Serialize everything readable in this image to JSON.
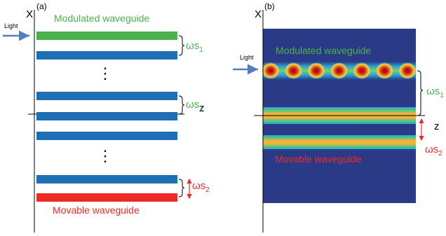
{
  "panel_a": {
    "tag": "(a)",
    "x_axis_label": "X",
    "z_axis_label": "z",
    "light_label": "Light",
    "modulated_label": "Modulated waveguide",
    "movable_label": "Movable waveguide",
    "spacing_1_label": "ωs",
    "spacing_1_sub": "1",
    "spacing_1b_label": "ωs",
    "spacing_1b_sub": "1",
    "spacing_2_label": "ωs",
    "spacing_2_sub": "2",
    "ellipsis_1": "⋮",
    "ellipsis_2": "⋮"
  },
  "panel_b": {
    "tag": "(b)",
    "x_axis_label": "X",
    "z_axis_label": "z",
    "light_label": "Light",
    "modulated_label": "Modulated waveguide",
    "movable_label": "Movable waveguide",
    "spacing_1_label": "ωs",
    "spacing_1_sub": "1",
    "spacing_2_label": "ωs",
    "spacing_2_sub": "2",
    "hotspot_count": 7
  },
  "colors": {
    "modulated": "#4cb050",
    "coupled": "#1f6fb5",
    "movable": "#ee2a24",
    "light_arrow": "#4f7fbf",
    "field_background": "#2b3a86",
    "field_band": "#f5a020"
  }
}
